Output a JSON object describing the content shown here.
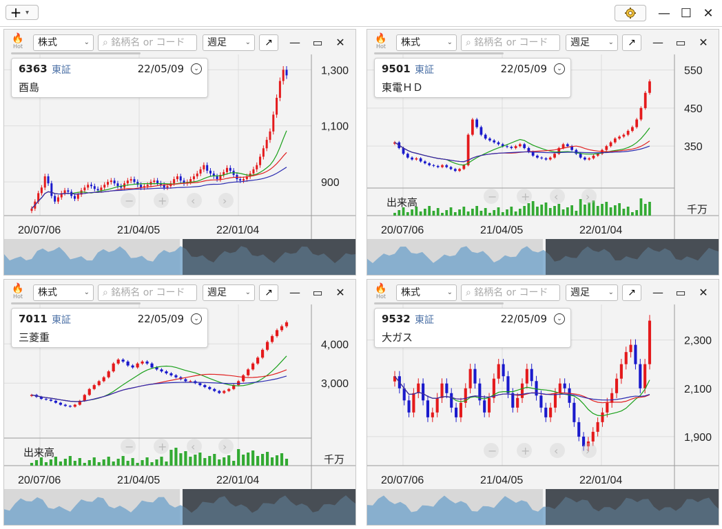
{
  "toolbar": {
    "add_label": "+",
    "add_caret": "⌄"
  },
  "window": {
    "minimize": "—",
    "maximize": "☐",
    "close": "✕"
  },
  "colors": {
    "up": "#e41a1c",
    "down": "#1a1acc",
    "ma_short": "#1aa01a",
    "ma_mid": "#e02020",
    "ma_long": "#2a2ab0",
    "volume": "#33aa33"
  },
  "panels": [
    {
      "type_label": "株式",
      "search_placeholder": "銘柄名 or コード",
      "period_label": "週足",
      "hot_label": "Hot",
      "code": "6363",
      "exchange": "東証",
      "date": "22/05/09",
      "name": "酉島",
      "volume_label": "",
      "volume_unit": "",
      "xticks": [
        "20/07/06",
        "21/04/05",
        "22/01/04"
      ],
      "yticks": [
        "1,300",
        "1,100",
        "900"
      ],
      "chart_data": {
        "type": "candlestick",
        "ylim": [
          780,
          1340
        ],
        "yticks": [
          1300,
          1100,
          900
        ],
        "closes": [
          805,
          830,
          860,
          880,
          920,
          895,
          850,
          830,
          845,
          860,
          870,
          865,
          850,
          840,
          855,
          870,
          880,
          890,
          885,
          875,
          870,
          880,
          890,
          900,
          905,
          895,
          885,
          880,
          895,
          905,
          910,
          900,
          890,
          880,
          885,
          890,
          900,
          905,
          895,
          890,
          880,
          885,
          895,
          910,
          920,
          905,
          895,
          900,
          910,
          920,
          930,
          945,
          960,
          940,
          930,
          920,
          910,
          925,
          935,
          950,
          940,
          925,
          910,
          905,
          910,
          920,
          930,
          945,
          960,
          990,
          1020,
          1050,
          1080,
          1140,
          1200,
          1260,
          1300,
          1280
        ],
        "ma13": [],
        "ma26": []
      }
    },
    {
      "type_label": "株式",
      "search_placeholder": "銘柄名 or コード",
      "period_label": "週足",
      "hot_label": "Hot",
      "code": "9501",
      "exchange": "東証",
      "date": "22/05/09",
      "name": "東電ＨＤ",
      "volume_label": "出来高",
      "volume_unit": "千万",
      "xticks": [
        "20/07/06",
        "21/04/05",
        "22/01/04"
      ],
      "yticks": [
        "550",
        "450",
        "350"
      ],
      "chart_data": {
        "type": "candlestick",
        "ylim": [
          240,
          580
        ],
        "yticks": [
          550,
          450,
          350
        ],
        "closes": [
          360,
          345,
          330,
          320,
          315,
          318,
          310,
          305,
          300,
          298,
          295,
          300,
          295,
          290,
          285,
          290,
          300,
          380,
          420,
          400,
          380,
          370,
          365,
          360,
          355,
          350,
          348,
          345,
          350,
          355,
          345,
          335,
          325,
          320,
          318,
          315,
          320,
          330,
          345,
          355,
          350,
          340,
          330,
          320,
          315,
          318,
          325,
          330,
          340,
          350,
          360,
          370,
          375,
          380,
          390,
          400,
          420,
          450,
          490,
          520
        ],
        "ma13": [],
        "ma26": []
      }
    },
    {
      "type_label": "株式",
      "search_placeholder": "銘柄名 or コード",
      "period_label": "週足",
      "hot_label": "Hot",
      "code": "7011",
      "exchange": "東証",
      "date": "22/05/09",
      "name": "三菱重",
      "volume_label": "出来高",
      "volume_unit": "千万",
      "xticks": [
        "20/07/06",
        "21/04/05",
        "22/01/04"
      ],
      "yticks": [
        "4,000",
        "3,000"
      ],
      "chart_data": {
        "type": "candlestick",
        "ylim": [
          1600,
          4900
        ],
        "yticks": [
          4000,
          3000
        ],
        "closes": [
          2700,
          2650,
          2600,
          2580,
          2550,
          2500,
          2450,
          2420,
          2400,
          2450,
          2550,
          2700,
          2850,
          2950,
          3050,
          3150,
          3300,
          3500,
          3600,
          3550,
          3450,
          3400,
          3500,
          3550,
          3500,
          3400,
          3350,
          3300,
          3250,
          3200,
          3150,
          3100,
          3050,
          3050,
          3000,
          2950,
          2900,
          2850,
          2800,
          2750,
          2800,
          2850,
          2950,
          3050,
          3200,
          3350,
          3500,
          3650,
          3850,
          4050,
          4200,
          4350,
          4450,
          4550
        ],
        "ma13": [],
        "ma26": []
      }
    },
    {
      "type_label": "株式",
      "search_placeholder": "銘柄名 or コード",
      "period_label": "週足",
      "hot_label": "Hot",
      "code": "9532",
      "exchange": "東証",
      "date": "22/05/09",
      "name": "大ガス",
      "volume_label": "",
      "volume_unit": "",
      "xticks": [
        "20/07/06",
        "21/04/05",
        "22/01/04"
      ],
      "yticks": [
        "2,300",
        "2,100",
        "1,900"
      ],
      "chart_data": {
        "type": "candlestick",
        "ylim": [
          1780,
          2430
        ],
        "yticks": [
          2300,
          2100,
          1900
        ],
        "closes": [
          2150,
          2100,
          2050,
          2000,
          2080,
          2120,
          2050,
          1980,
          2000,
          2060,
          2120,
          2080,
          2020,
          1980,
          2040,
          2100,
          2180,
          2120,
          2050,
          2000,
          2060,
          2140,
          2200,
          2150,
          2080,
          2020,
          2060,
          2120,
          2180,
          2130,
          2070,
          2020,
          1980,
          2020,
          2080,
          2120,
          2100,
          2040,
          1960,
          1900,
          1860,
          1880,
          1920,
          1960,
          2000,
          2040,
          2080,
          2140,
          2200,
          2250,
          2280,
          2200,
          2100,
          2200,
          2380
        ],
        "ma13": [],
        "ma26": []
      }
    }
  ]
}
